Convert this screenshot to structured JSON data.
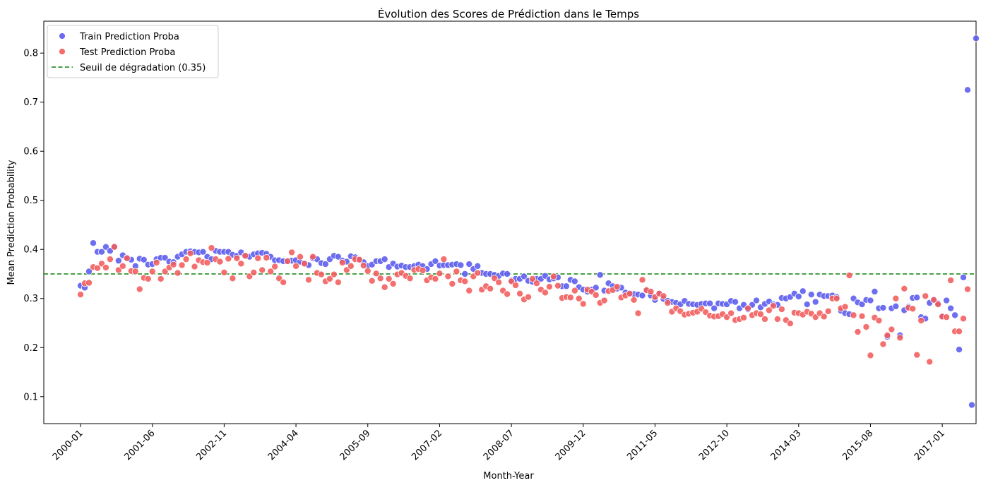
{
  "colors": {
    "train": "#5a5aee",
    "test": "#f35b5b",
    "threshold": "#0a800a"
  },
  "chart_data": {
    "type": "scatter",
    "title": "Évolution des Scores de Prédiction dans le Temps",
    "xlabel": "Month-Year",
    "ylabel": "Mean Prediction Probability",
    "x_ticks": [
      "2000-01",
      "2001-06",
      "2002-11",
      "2004-04",
      "2005-09",
      "2007-02",
      "2008-07",
      "2009-12",
      "2011-05",
      "2012-10",
      "2014-03",
      "2015-08",
      "2017-01"
    ],
    "x_tick_index_step": 17,
    "xlim_index": [
      -8.7,
      212
    ],
    "y_ticks": [
      "0.1",
      "0.2",
      "0.3",
      "0.4",
      "0.5",
      "0.6",
      "0.7",
      "0.8"
    ],
    "ylim": [
      0.045,
      0.865
    ],
    "grid": false,
    "legend_position": "upper left",
    "legend": {
      "train_label": "Train Prediction Proba",
      "test_label": "Test Prediction Proba",
      "threshold_label": "Seuil de dégradation (0.35)"
    },
    "threshold": 0.35,
    "series": [
      {
        "name": "Train Prediction Proba",
        "x_start": "2000-01",
        "values": [
          0.326,
          0.322,
          0.355,
          0.413,
          0.395,
          0.395,
          0.405,
          0.397,
          0.406,
          0.377,
          0.388,
          0.383,
          0.379,
          0.366,
          0.381,
          0.379,
          0.369,
          0.37,
          0.38,
          0.383,
          0.383,
          0.375,
          0.374,
          0.385,
          0.39,
          0.395,
          0.396,
          0.395,
          0.394,
          0.395,
          0.385,
          0.38,
          0.397,
          0.395,
          0.395,
          0.395,
          0.389,
          0.387,
          0.394,
          0.388,
          0.385,
          0.39,
          0.392,
          0.393,
          0.391,
          0.385,
          0.378,
          0.378,
          0.376,
          0.376,
          0.377,
          0.378,
          0.375,
          0.372,
          0.368,
          0.382,
          0.38,
          0.372,
          0.37,
          0.38,
          0.387,
          0.385,
          0.377,
          0.375,
          0.386,
          0.384,
          0.38,
          0.374,
          0.366,
          0.369,
          0.376,
          0.376,
          0.38,
          0.364,
          0.371,
          0.365,
          0.367,
          0.364,
          0.364,
          0.366,
          0.369,
          0.366,
          0.36,
          0.37,
          0.376,
          0.367,
          0.368,
          0.368,
          0.369,
          0.37,
          0.368,
          0.35,
          0.37,
          0.36,
          0.366,
          0.352,
          0.35,
          0.35,
          0.348,
          0.346,
          0.351,
          0.35,
          0.337,
          0.34,
          0.34,
          0.345,
          0.336,
          0.334,
          0.34,
          0.34,
          0.346,
          0.339,
          0.341,
          0.343,
          0.325,
          0.325,
          0.338,
          0.335,
          0.323,
          0.318,
          0.314,
          0.318,
          0.322,
          0.348,
          0.316,
          0.331,
          0.325,
          0.32,
          0.322,
          0.312,
          0.31,
          0.309,
          0.308,
          0.306,
          0.316,
          0.306,
          0.297,
          0.31,
          0.299,
          0.295,
          0.293,
          0.291,
          0.288,
          0.295,
          0.289,
          0.288,
          0.287,
          0.289,
          0.29,
          0.29,
          0.28,
          0.29,
          0.289,
          0.288,
          0.295,
          0.293,
          0.28,
          0.287,
          0.278,
          0.287,
          0.296,
          0.282,
          0.289,
          0.294,
          0.288,
          0.287,
          0.301,
          0.3,
          0.303,
          0.31,
          0.304,
          0.315,
          0.288,
          0.308,
          0.293,
          0.308,
          0.305,
          0.305,
          0.306,
          0.303,
          0.275,
          0.27,
          0.268,
          0.3,
          0.292,
          0.288,
          0.297,
          0.296,
          0.314,
          0.28,
          0.281,
          0.222,
          0.28,
          0.284,
          0.225,
          0.276,
          0.283,
          0.301,
          0.302,
          0.262,
          0.259,
          0.291,
          0.298,
          0.29,
          0.264,
          0.296,
          0.28,
          0.266,
          0.196,
          0.343,
          0.725,
          0.083,
          0.83
        ]
      },
      {
        "name": "Test Prediction Proba",
        "x_start": "2000-01",
        "values": [
          0.308,
          0.331,
          0.332,
          0.364,
          0.362,
          0.371,
          0.363,
          0.38,
          0.405,
          0.358,
          0.366,
          0.382,
          0.356,
          0.355,
          0.319,
          0.342,
          0.34,
          0.355,
          0.373,
          0.34,
          0.355,
          0.363,
          0.369,
          0.352,
          0.368,
          0.38,
          0.392,
          0.365,
          0.378,
          0.374,
          0.373,
          0.403,
          0.38,
          0.375,
          0.353,
          0.381,
          0.341,
          0.382,
          0.371,
          0.387,
          0.345,
          0.353,
          0.382,
          0.358,
          0.383,
          0.355,
          0.365,
          0.341,
          0.333,
          0.376,
          0.394,
          0.366,
          0.385,
          0.371,
          0.338,
          0.385,
          0.352,
          0.349,
          0.335,
          0.34,
          0.349,
          0.333,
          0.373,
          0.358,
          0.366,
          0.38,
          0.379,
          0.367,
          0.356,
          0.336,
          0.351,
          0.341,
          0.323,
          0.34,
          0.33,
          0.349,
          0.352,
          0.346,
          0.341,
          0.358,
          0.36,
          0.357,
          0.337,
          0.343,
          0.34,
          0.351,
          0.38,
          0.345,
          0.33,
          0.355,
          0.337,
          0.335,
          0.316,
          0.345,
          0.352,
          0.318,
          0.325,
          0.32,
          0.341,
          0.333,
          0.316,
          0.309,
          0.335,
          0.327,
          0.31,
          0.298,
          0.303,
          0.34,
          0.331,
          0.318,
          0.312,
          0.324,
          0.345,
          0.326,
          0.301,
          0.303,
          0.302,
          0.316,
          0.3,
          0.289,
          0.318,
          0.314,
          0.307,
          0.291,
          0.296,
          0.315,
          0.317,
          0.324,
          0.302,
          0.306,
          0.31,
          0.297,
          0.27,
          0.338,
          0.317,
          0.314,
          0.303,
          0.31,
          0.305,
          0.291,
          0.273,
          0.28,
          0.274,
          0.267,
          0.269,
          0.271,
          0.273,
          0.279,
          0.272,
          0.265,
          0.263,
          0.264,
          0.268,
          0.262,
          0.27,
          0.256,
          0.258,
          0.261,
          0.28,
          0.266,
          0.27,
          0.268,
          0.258,
          0.276,
          0.285,
          0.258,
          0.278,
          0.256,
          0.249,
          0.271,
          0.27,
          0.267,
          0.273,
          0.269,
          0.262,
          0.27,
          0.263,
          0.274,
          0.3,
          0.3,
          0.28,
          0.283,
          0.347,
          0.266,
          0.232,
          0.264,
          0.242,
          0.184,
          0.261,
          0.255,
          0.207,
          0.225,
          0.237,
          0.3,
          0.22,
          0.32,
          0.281,
          0.279,
          0.185,
          0.255,
          0.305,
          0.171,
          0.297,
          0.288,
          0.263,
          0.262,
          0.337,
          0.233,
          0.233,
          0.259,
          0.319
        ]
      }
    ]
  }
}
